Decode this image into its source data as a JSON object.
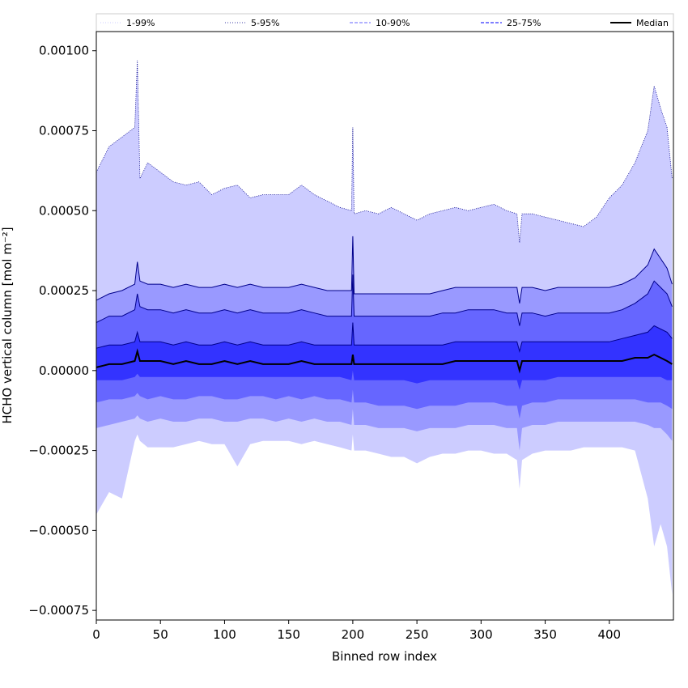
{
  "chart_data": {
    "type": "area",
    "xlabel": "Binned row index",
    "ylabel": "HCHO vertical column [mol m⁻²]",
    "xlim": [
      0,
      450
    ],
    "ylim": [
      -0.00078,
      0.00106
    ],
    "x_ticks": [
      0,
      50,
      100,
      150,
      200,
      250,
      300,
      350,
      400
    ],
    "x_tick_labels": [
      "0",
      "50",
      "100",
      "150",
      "200",
      "250",
      "300",
      "350",
      "400"
    ],
    "y_ticks": [
      -0.00075,
      -0.0005,
      -0.00025,
      0.0,
      0.00025,
      0.0005,
      0.00075,
      0.001
    ],
    "y_tick_labels": [
      "−0.00075",
      "−0.00050",
      "−0.00025",
      "0.00000",
      "0.00025",
      "0.00050",
      "0.00075",
      "0.00100"
    ],
    "grid": false,
    "legend_position": "top (above plot, spanning full width)",
    "legend": [
      {
        "label": "1-99%",
        "color": "#ccccff",
        "style": "dotted"
      },
      {
        "label": "5-95%",
        "color": "#00008b",
        "style": "dotted"
      },
      {
        "label": "10-90%",
        "color": "#6464ff",
        "style": "dashed"
      },
      {
        "label": "25-75%",
        "color": "#3232ff",
        "style": "dashed"
      },
      {
        "label": "Median",
        "color": "#000000",
        "style": "solid"
      }
    ],
    "band_colors": {
      "p1_p99": "#ccccff",
      "p5_p95": "#9999ff",
      "p10_p90": "#6666ff",
      "p25_p75": "#3333ff",
      "line": "#00008b",
      "median": "#000000"
    },
    "x": [
      0,
      10,
      20,
      30,
      32,
      34,
      40,
      50,
      60,
      70,
      80,
      90,
      100,
      110,
      120,
      130,
      140,
      150,
      160,
      170,
      180,
      190,
      199,
      200,
      201,
      210,
      220,
      230,
      240,
      250,
      260,
      270,
      280,
      290,
      300,
      310,
      320,
      328,
      330,
      332,
      340,
      350,
      360,
      370,
      380,
      390,
      400,
      410,
      420,
      430,
      435,
      440,
      445,
      449
    ],
    "series": [
      {
        "key": "p1",
        "values": [
          -0.00045,
          -0.00038,
          -0.0004,
          -0.00022,
          -0.0002,
          -0.00022,
          -0.00024,
          -0.00024,
          -0.00024,
          -0.00023,
          -0.00022,
          -0.00023,
          -0.00023,
          -0.0003,
          -0.00023,
          -0.00022,
          -0.00022,
          -0.00022,
          -0.00023,
          -0.00022,
          -0.00023,
          -0.00024,
          -0.00025,
          -0.0002,
          -0.00025,
          -0.00025,
          -0.00026,
          -0.00027,
          -0.00027,
          -0.00029,
          -0.00027,
          -0.00026,
          -0.00026,
          -0.00025,
          -0.00025,
          -0.00026,
          -0.00026,
          -0.00028,
          -0.00037,
          -0.00028,
          -0.00026,
          -0.00025,
          -0.00025,
          -0.00025,
          -0.00024,
          -0.00024,
          -0.00024,
          -0.00024,
          -0.00025,
          -0.0004,
          -0.00055,
          -0.00048,
          -0.00055,
          -0.0007
        ]
      },
      {
        "key": "p5",
        "values": [
          -0.00018,
          -0.00017,
          -0.00016,
          -0.00015,
          -0.00014,
          -0.00015,
          -0.00016,
          -0.00015,
          -0.00016,
          -0.00016,
          -0.00015,
          -0.00015,
          -0.00016,
          -0.00016,
          -0.00015,
          -0.00015,
          -0.00016,
          -0.00015,
          -0.00016,
          -0.00015,
          -0.00016,
          -0.00016,
          -0.00017,
          -0.00012,
          -0.00017,
          -0.00017,
          -0.00018,
          -0.00018,
          -0.00018,
          -0.00019,
          -0.00018,
          -0.00018,
          -0.00018,
          -0.00017,
          -0.00017,
          -0.00017,
          -0.00018,
          -0.00018,
          -0.00025,
          -0.00018,
          -0.00017,
          -0.00017,
          -0.00016,
          -0.00016,
          -0.00016,
          -0.00016,
          -0.00016,
          -0.00016,
          -0.00016,
          -0.00017,
          -0.00018,
          -0.00018,
          -0.0002,
          -0.00022
        ]
      },
      {
        "key": "p10",
        "values": [
          -0.0001,
          -9e-05,
          -9e-05,
          -8e-05,
          -7e-05,
          -8e-05,
          -9e-05,
          -8e-05,
          -9e-05,
          -9e-05,
          -8e-05,
          -8e-05,
          -9e-05,
          -9e-05,
          -8e-05,
          -8e-05,
          -9e-05,
          -8e-05,
          -9e-05,
          -8e-05,
          -9e-05,
          -9e-05,
          -0.0001,
          -6e-05,
          -0.0001,
          -0.0001,
          -0.00011,
          -0.00011,
          -0.00011,
          -0.00012,
          -0.00011,
          -0.00011,
          -0.00011,
          -0.0001,
          -0.0001,
          -0.0001,
          -0.00011,
          -0.00011,
          -0.00015,
          -0.00011,
          -0.0001,
          -0.0001,
          -9e-05,
          -9e-05,
          -9e-05,
          -9e-05,
          -9e-05,
          -9e-05,
          -9e-05,
          -0.0001,
          -0.0001,
          -0.0001,
          -0.00011,
          -0.00012
        ]
      },
      {
        "key": "p25",
        "values": [
          -3e-05,
          -3e-05,
          -3e-05,
          -2e-05,
          -1e-05,
          -2e-05,
          -2e-05,
          -2e-05,
          -2e-05,
          -2e-05,
          -2e-05,
          -2e-05,
          -2e-05,
          -2e-05,
          -2e-05,
          -2e-05,
          -2e-05,
          -2e-05,
          -2e-05,
          -2e-05,
          -2e-05,
          -2e-05,
          -3e-05,
          0.0,
          -3e-05,
          -3e-05,
          -3e-05,
          -3e-05,
          -3e-05,
          -4e-05,
          -3e-05,
          -3e-05,
          -3e-05,
          -3e-05,
          -3e-05,
          -3e-05,
          -3e-05,
          -3e-05,
          -6e-05,
          -3e-05,
          -3e-05,
          -3e-05,
          -2e-05,
          -2e-05,
          -2e-05,
          -2e-05,
          -2e-05,
          -2e-05,
          -2e-05,
          -2e-05,
          -2e-05,
          -2e-05,
          -3e-05,
          -3e-05
        ]
      },
      {
        "key": "median",
        "values": [
          1e-05,
          2e-05,
          2e-05,
          3e-05,
          6e-05,
          3e-05,
          3e-05,
          3e-05,
          2e-05,
          3e-05,
          2e-05,
          2e-05,
          3e-05,
          2e-05,
          3e-05,
          2e-05,
          2e-05,
          2e-05,
          3e-05,
          2e-05,
          2e-05,
          2e-05,
          2e-05,
          5e-05,
          2e-05,
          2e-05,
          2e-05,
          2e-05,
          2e-05,
          2e-05,
          2e-05,
          2e-05,
          3e-05,
          3e-05,
          3e-05,
          3e-05,
          3e-05,
          3e-05,
          0.0,
          3e-05,
          3e-05,
          3e-05,
          3e-05,
          3e-05,
          3e-05,
          3e-05,
          3e-05,
          3e-05,
          4e-05,
          4e-05,
          5e-05,
          4e-05,
          3e-05,
          2e-05
        ]
      },
      {
        "key": "p75",
        "values": [
          7e-05,
          8e-05,
          8e-05,
          9e-05,
          0.00012,
          9e-05,
          9e-05,
          9e-05,
          8e-05,
          9e-05,
          8e-05,
          8e-05,
          9e-05,
          8e-05,
          9e-05,
          8e-05,
          8e-05,
          8e-05,
          9e-05,
          8e-05,
          8e-05,
          8e-05,
          8e-05,
          0.00015,
          8e-05,
          8e-05,
          8e-05,
          8e-05,
          8e-05,
          8e-05,
          8e-05,
          8e-05,
          9e-05,
          9e-05,
          9e-05,
          9e-05,
          9e-05,
          9e-05,
          6e-05,
          9e-05,
          9e-05,
          9e-05,
          9e-05,
          9e-05,
          9e-05,
          9e-05,
          9e-05,
          0.0001,
          0.00011,
          0.00012,
          0.00014,
          0.00013,
          0.00012,
          0.0001
        ]
      },
      {
        "key": "p90",
        "values": [
          0.00015,
          0.00017,
          0.00017,
          0.00019,
          0.00024,
          0.0002,
          0.00019,
          0.00019,
          0.00018,
          0.00019,
          0.00018,
          0.00018,
          0.00019,
          0.00018,
          0.00019,
          0.00018,
          0.00018,
          0.00018,
          0.00019,
          0.00018,
          0.00017,
          0.00017,
          0.00017,
          0.0003,
          0.00017,
          0.00017,
          0.00017,
          0.00017,
          0.00017,
          0.00017,
          0.00017,
          0.00018,
          0.00018,
          0.00019,
          0.00019,
          0.00019,
          0.00018,
          0.00018,
          0.00014,
          0.00018,
          0.00018,
          0.00017,
          0.00018,
          0.00018,
          0.00018,
          0.00018,
          0.00018,
          0.00019,
          0.00021,
          0.00024,
          0.00028,
          0.00026,
          0.00024,
          0.0002
        ]
      },
      {
        "key": "p95",
        "values": [
          0.00022,
          0.00024,
          0.00025,
          0.00027,
          0.00034,
          0.00028,
          0.00027,
          0.00027,
          0.00026,
          0.00027,
          0.00026,
          0.00026,
          0.00027,
          0.00026,
          0.00027,
          0.00026,
          0.00026,
          0.00026,
          0.00027,
          0.00026,
          0.00025,
          0.00025,
          0.00025,
          0.00042,
          0.00024,
          0.00024,
          0.00024,
          0.00024,
          0.00024,
          0.00024,
          0.00024,
          0.00025,
          0.00026,
          0.00026,
          0.00026,
          0.00026,
          0.00026,
          0.00026,
          0.00021,
          0.00026,
          0.00026,
          0.00025,
          0.00026,
          0.00026,
          0.00026,
          0.00026,
          0.00026,
          0.00027,
          0.00029,
          0.00033,
          0.00038,
          0.00035,
          0.00032,
          0.00027
        ]
      },
      {
        "key": "p99",
        "values": [
          0.00062,
          0.0007,
          0.00073,
          0.00076,
          0.00097,
          0.0006,
          0.00065,
          0.00062,
          0.00059,
          0.00058,
          0.00059,
          0.00055,
          0.00057,
          0.00058,
          0.00054,
          0.00055,
          0.00055,
          0.00055,
          0.00058,
          0.00055,
          0.00053,
          0.00051,
          0.0005,
          0.00076,
          0.00049,
          0.0005,
          0.00049,
          0.00051,
          0.00049,
          0.00047,
          0.00049,
          0.0005,
          0.00051,
          0.0005,
          0.00051,
          0.00052,
          0.0005,
          0.00049,
          0.0004,
          0.00049,
          0.00049,
          0.00048,
          0.00047,
          0.00046,
          0.00045,
          0.00048,
          0.00054,
          0.00058,
          0.00065,
          0.00075,
          0.00089,
          0.00082,
          0.00076,
          0.0006
        ]
      }
    ]
  }
}
